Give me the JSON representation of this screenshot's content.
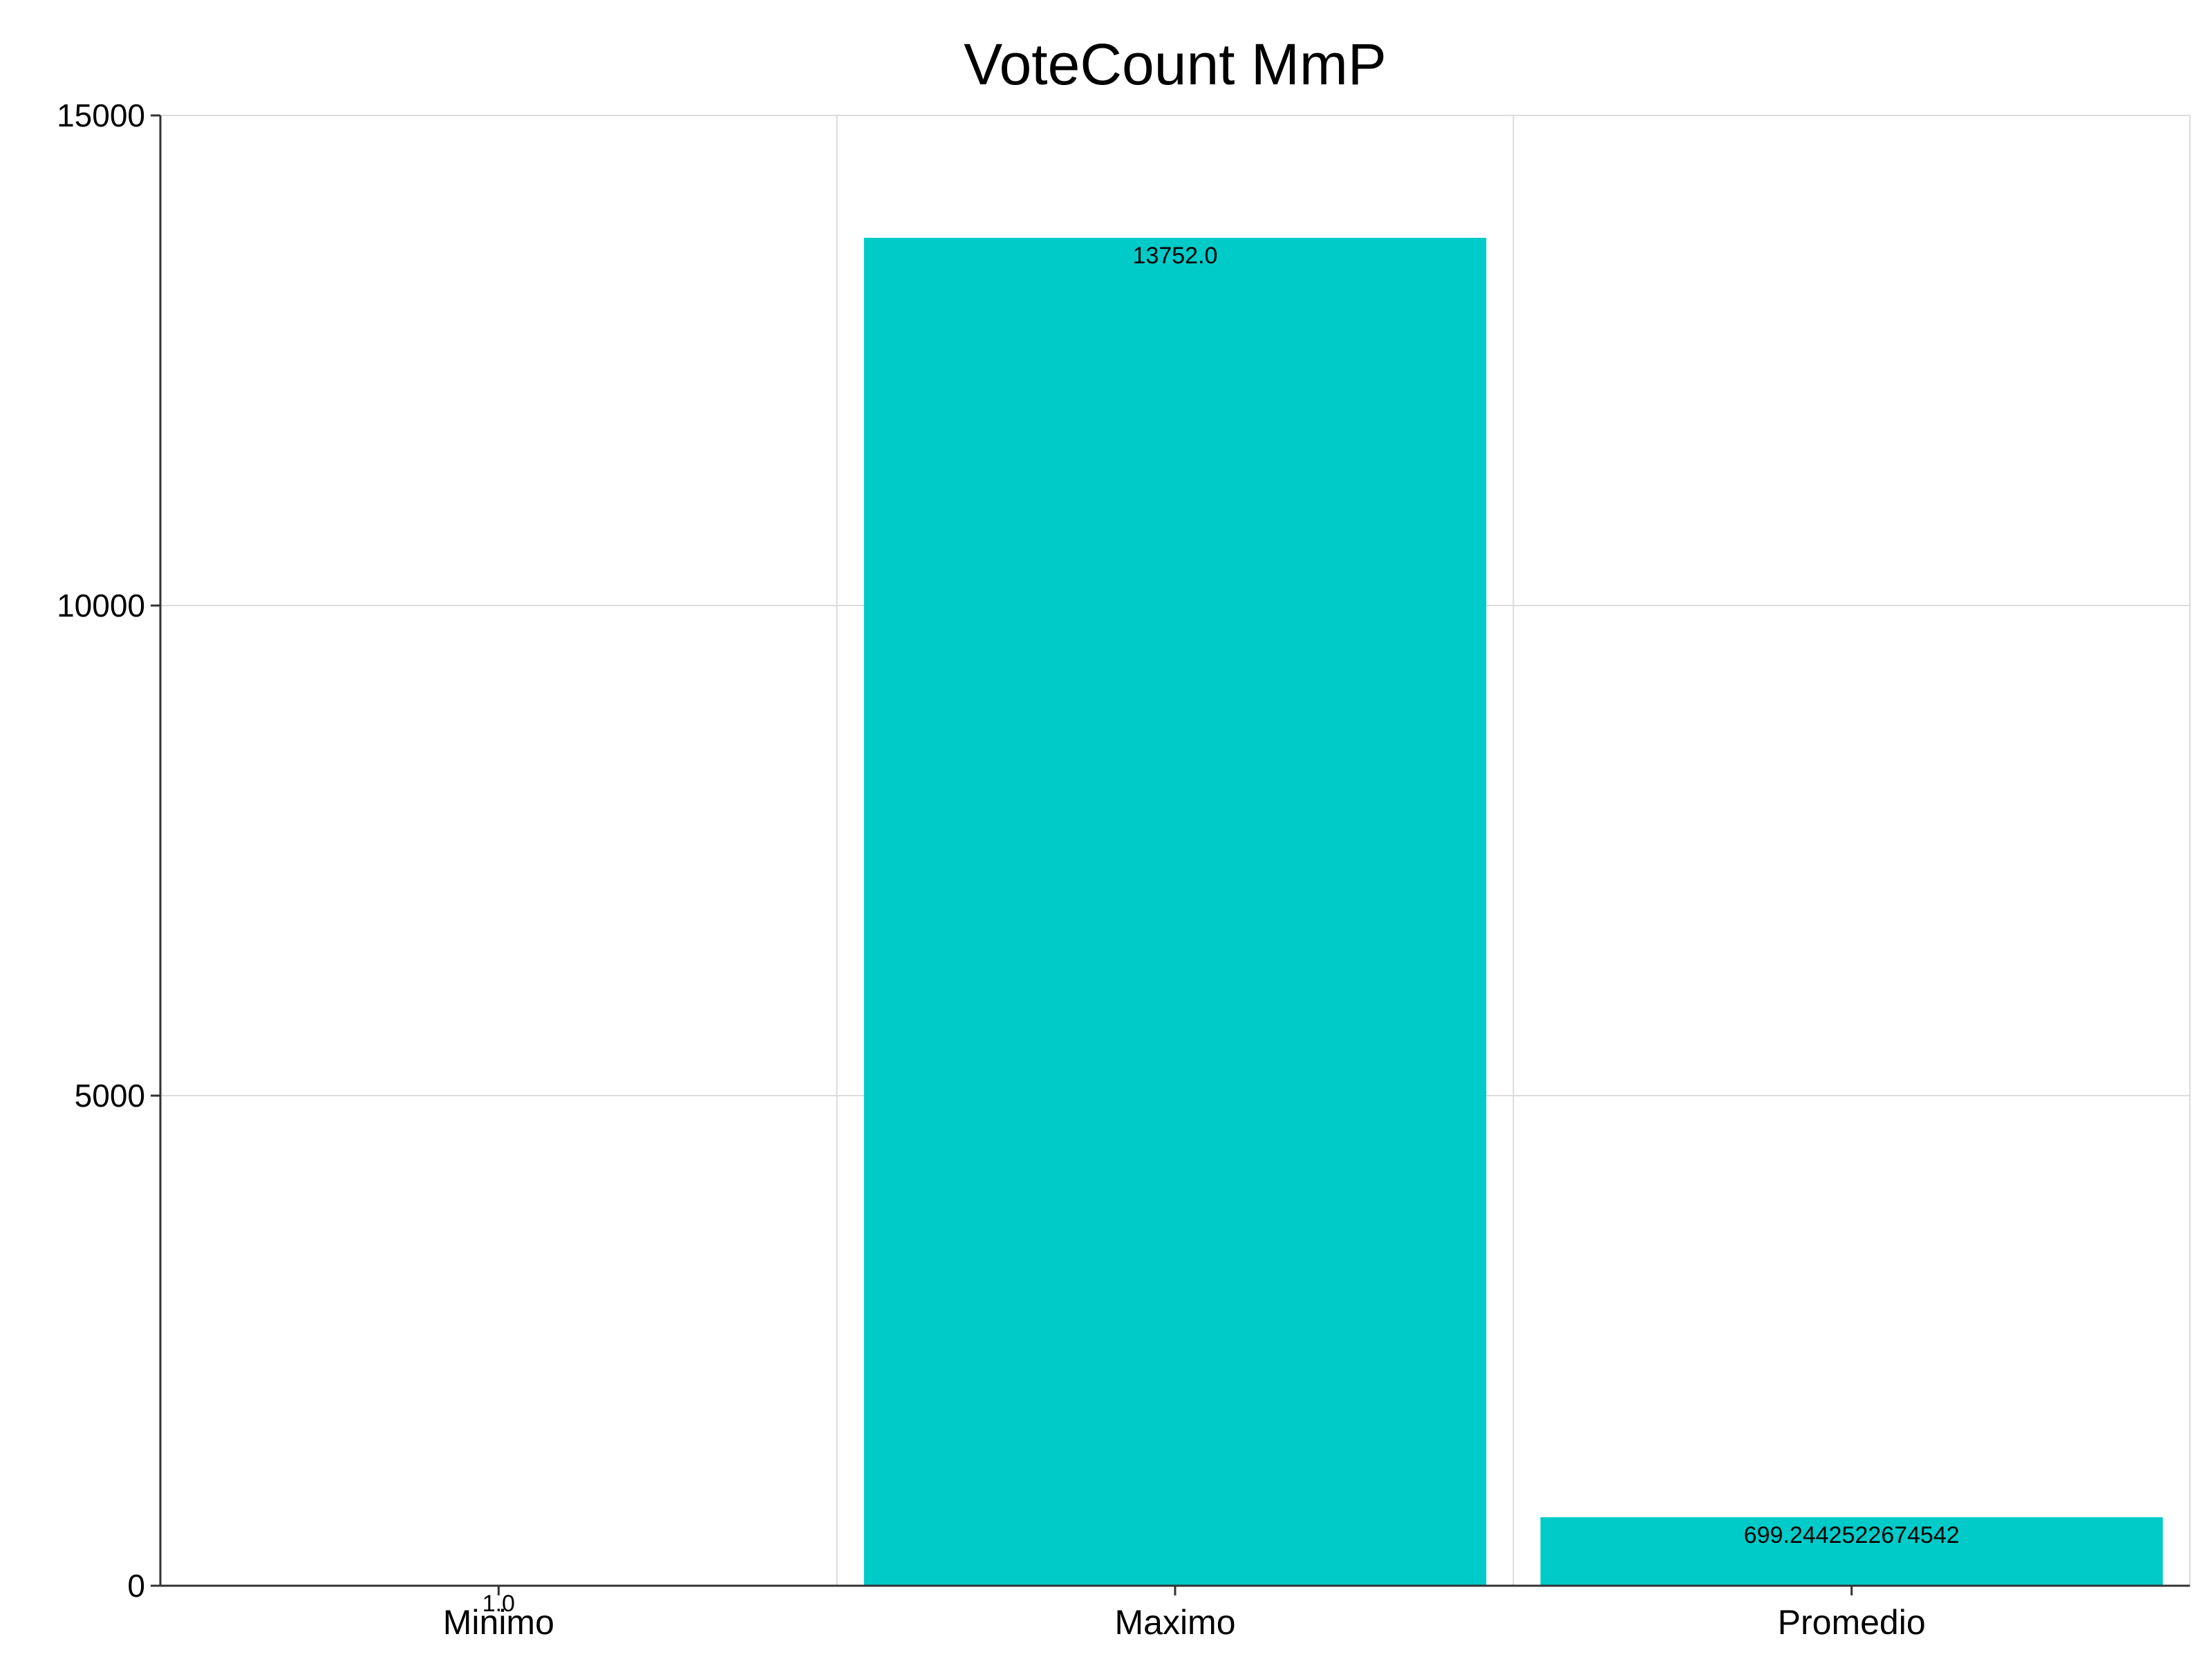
{
  "chart_data": {
    "type": "bar",
    "title": "VoteCount MmP",
    "xlabel": "",
    "ylabel": "",
    "categories": [
      "Minimo",
      "Maximo",
      "Promedio"
    ],
    "values": [
      1.0,
      13752.0,
      699.2442522674542
    ],
    "data_labels": [
      "1.0",
      "13752.0",
      "699.2442522674542"
    ],
    "ylim": [
      0,
      15000
    ],
    "yticks": [
      0,
      5000,
      10000,
      15000
    ],
    "ytick_labels": [
      "0",
      "5000",
      "10000",
      "15000"
    ],
    "grid": true,
    "bar_color": "#00cbc9",
    "grid_color": "#dcdcdc",
    "axis_color": "#333333"
  }
}
